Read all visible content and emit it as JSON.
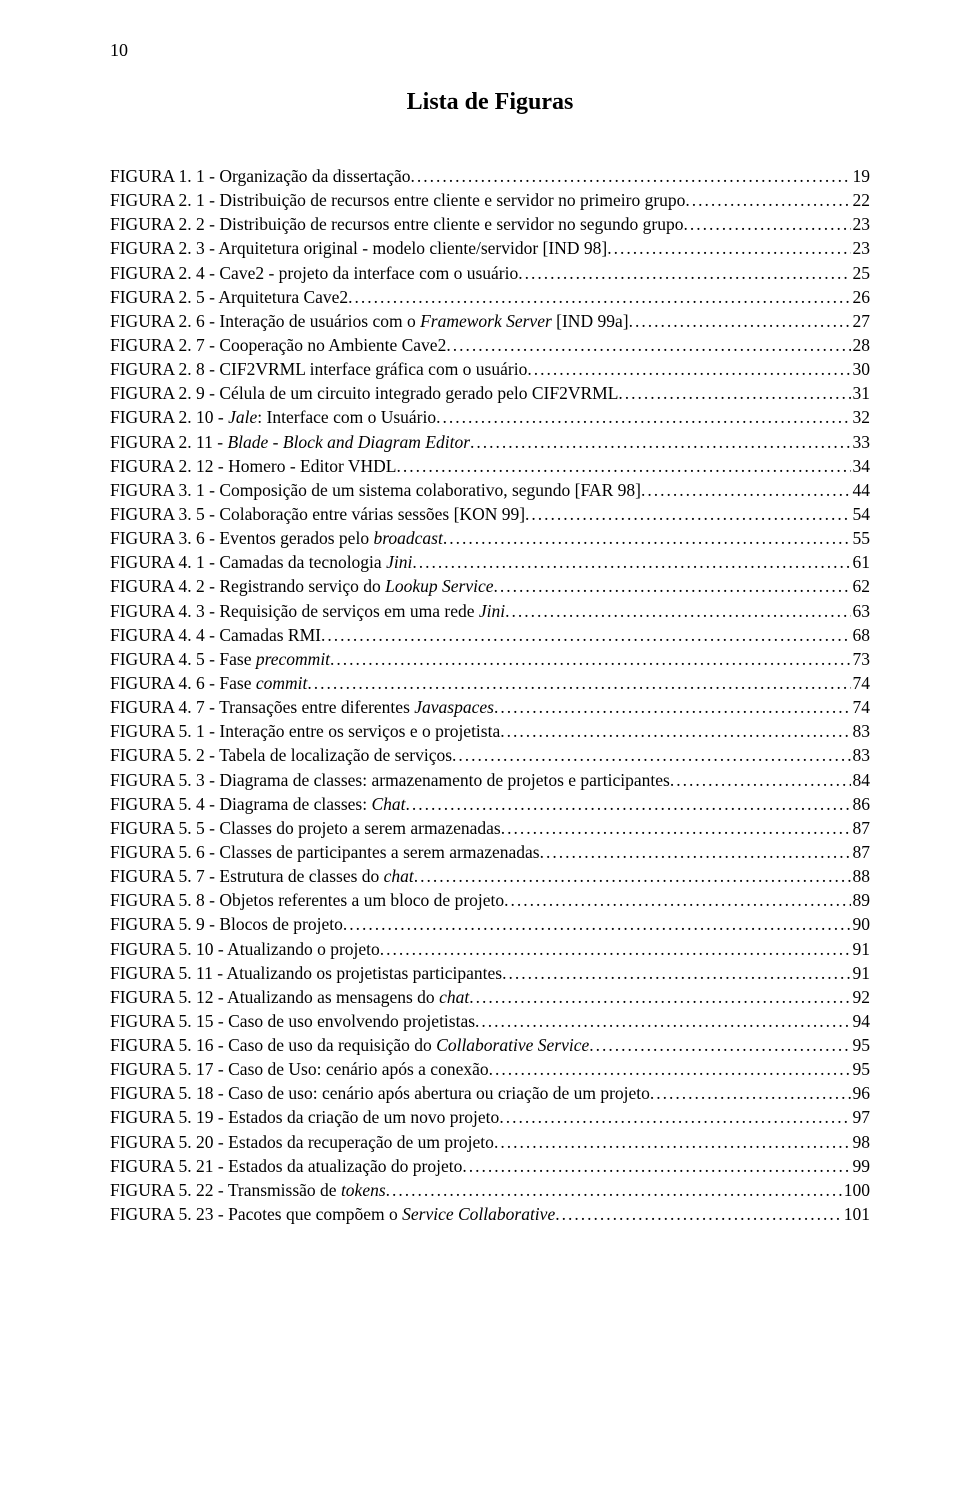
{
  "page_number": "10",
  "title": "Lista de Figuras",
  "font": {
    "family": "Times New Roman",
    "body_size_pt": 13,
    "title_size_pt": 18
  },
  "colors": {
    "text": "#000000",
    "background": "#ffffff"
  },
  "entries": [
    {
      "prefix": "FIGURA 1. 1 - Organização da dissertação",
      "suffix": "",
      "page": "19"
    },
    {
      "prefix": "FIGURA 2. 1 - Distribuição de recursos entre cliente e servidor no primeiro grupo",
      "suffix": "",
      "page": "22"
    },
    {
      "prefix": "FIGURA 2. 2 - Distribuição de recursos entre cliente e servidor no segundo grupo",
      "suffix": "",
      "page": "23"
    },
    {
      "prefix": "FIGURA 2. 3 - Arquitetura original - modelo cliente/servidor [IND 98]",
      "suffix": "",
      "page": "23"
    },
    {
      "prefix": "FIGURA 2. 4 - Cave2 - projeto da interface com o usuário",
      "suffix": "",
      "page": "25"
    },
    {
      "prefix": "FIGURA 2. 5 - Arquitetura Cave2",
      "suffix": "",
      "page": "26"
    },
    {
      "prefix": "FIGURA 2. 6 - Interação de usuários com o ",
      "italic": "Framework Server",
      "suffix": " [IND 99a]",
      "page": "27"
    },
    {
      "prefix": "FIGURA 2. 7 - Cooperação no Ambiente Cave2",
      "suffix": "",
      "page": "28"
    },
    {
      "prefix": "FIGURA 2. 8 - CIF2VRML interface gráfica com o usuário",
      "suffix": "",
      "page": "30"
    },
    {
      "prefix": "FIGURA 2. 9 - Célula de um circuito integrado gerado pelo CIF2VRML",
      "suffix": "",
      "page": "31"
    },
    {
      "prefix": "FIGURA 2. 10 - ",
      "italic": "Jale",
      "suffix": ": Interface com o Usuário",
      "page": "32"
    },
    {
      "prefix": "FIGURA 2. 11 - ",
      "italic": "Blade - Block and Diagram Editor",
      "suffix": "",
      "page": "33"
    },
    {
      "prefix": "FIGURA 2. 12 - Homero - Editor VHDL",
      "suffix": "",
      "page": "34"
    },
    {
      "prefix": "FIGURA 3. 1 - Composição de um sistema colaborativo, segundo [FAR 98]",
      "suffix": "",
      "page": "44"
    },
    {
      "prefix": "FIGURA 3. 5 - Colaboração entre várias sessões [KON 99]",
      "suffix": "",
      "page": "54"
    },
    {
      "prefix": "FIGURA 3. 6 - Eventos gerados pelo ",
      "italic": "broadcast",
      "suffix": "",
      "page": "55"
    },
    {
      "prefix": "FIGURA 4. 1 - Camadas da tecnologia ",
      "italic": "Jini",
      "suffix": "",
      "page": "61"
    },
    {
      "prefix": "FIGURA 4. 2 - Registrando serviço do ",
      "italic": "Lookup Service",
      "suffix": "",
      "page": "62"
    },
    {
      "prefix": "FIGURA 4. 3 - Requisição de serviços em uma rede ",
      "italic": "Jini",
      "suffix": "",
      "page": "63"
    },
    {
      "prefix": "FIGURA 4. 4 - Camadas RMI",
      "suffix": "",
      "page": "68"
    },
    {
      "prefix": "FIGURA 4. 5 - Fase ",
      "italic": "precommit",
      "suffix": "",
      "page": "73"
    },
    {
      "prefix": "FIGURA 4. 6 - Fase ",
      "italic": "commit",
      "suffix": "",
      "page": "74"
    },
    {
      "prefix": "FIGURA 4. 7 - Transações entre diferentes ",
      "italic": "Javaspaces",
      "suffix": "",
      "page": "74"
    },
    {
      "prefix": "FIGURA 5. 1 - Interação entre os serviços e o projetista",
      "suffix": "",
      "page": "83"
    },
    {
      "prefix": "FIGURA 5. 2 - Tabela de localização de serviços",
      "suffix": "",
      "page": "83"
    },
    {
      "prefix": "FIGURA 5. 3 - Diagrama de classes:  armazenamento de projetos e participantes",
      "suffix": "",
      "page": "84"
    },
    {
      "prefix": "FIGURA 5. 4 - Diagrama de classes: ",
      "italic": "Chat",
      "suffix": "",
      "page": "86"
    },
    {
      "prefix": "FIGURA 5. 5 - Classes do projeto a serem armazenadas",
      "suffix": "",
      "page": "87"
    },
    {
      "prefix": "FIGURA 5. 6 - Classes de participantes a serem armazenadas",
      "suffix": "",
      "page": "87"
    },
    {
      "prefix": "FIGURA 5. 7 - Estrutura de classes do ",
      "italic": "chat",
      "suffix": "",
      "page": "88"
    },
    {
      "prefix": "FIGURA 5. 8 - Objetos referentes a um bloco de projeto",
      "suffix": "",
      "page": "89"
    },
    {
      "prefix": "FIGURA 5. 9 - Blocos de projeto",
      "suffix": "",
      "page": "90"
    },
    {
      "prefix": "FIGURA 5. 10 - Atualizando o projeto",
      "suffix": "",
      "page": "91"
    },
    {
      "prefix": "FIGURA 5. 11 - Atualizando os projetistas participantes",
      "suffix": "",
      "page": "91"
    },
    {
      "prefix": "FIGURA 5. 12 - Atualizando as mensagens do ",
      "italic": "chat",
      "suffix": "",
      "page": "92"
    },
    {
      "prefix": "FIGURA 5. 15 - Caso de uso envolvendo projetistas",
      "suffix": "",
      "page": "94"
    },
    {
      "prefix": "FIGURA 5. 16 - Caso de uso da requisição do ",
      "italic": "Collaborative Service",
      "suffix": "",
      "page": "95"
    },
    {
      "prefix": "FIGURA 5. 17 - Caso de Uso: cenário após a conexão",
      "suffix": "",
      "page": "95"
    },
    {
      "prefix": "FIGURA 5. 18 - Caso de uso: cenário após abertura ou criação de um projeto",
      "suffix": "",
      "page": "96"
    },
    {
      "prefix": "FIGURA 5. 19 - Estados da criação de um novo projeto",
      "suffix": "",
      "page": "97"
    },
    {
      "prefix": "FIGURA 5. 20 - Estados da recuperação de um projeto",
      "suffix": "",
      "page": "98"
    },
    {
      "prefix": "FIGURA 5. 21 - Estados da atualização do projeto",
      "suffix": "",
      "page": "99"
    },
    {
      "prefix": "FIGURA 5. 22 - Transmissão de ",
      "italic": "tokens",
      "suffix": "",
      "page": "100"
    },
    {
      "prefix": "FIGURA 5. 23 - Pacotes que compõem o ",
      "italic": "Service Collaborative",
      "suffix": "",
      "page": "101"
    }
  ]
}
